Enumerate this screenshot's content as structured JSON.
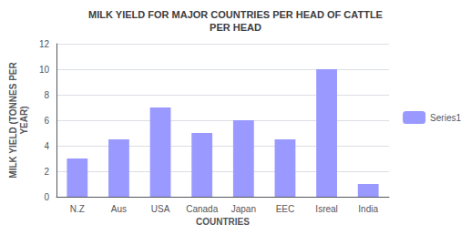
{
  "chart_data": {
    "type": "bar",
    "title": "MILK YIELD FOR MAJOR COUNTRIES PER HEAD OF CATTLE\nPER HEAD",
    "x_label": "COUNTRIES",
    "y_label": "MILK YIELD (TONNES PER\nYEAR)",
    "categories": [
      "N.Z",
      "Aus",
      "USA",
      "Canada",
      "Japan",
      "EEC",
      "Isreal",
      "India"
    ],
    "series": [
      {
        "name": "Series1",
        "color": "#9999ff",
        "values": [
          3,
          4.5,
          7,
          5,
          6,
          4.5,
          10,
          1
        ]
      }
    ],
    "ylim": [
      0,
      12
    ],
    "yticks": [
      0,
      2,
      4,
      6,
      8,
      10,
      12
    ],
    "grid": true,
    "legend": "right"
  }
}
